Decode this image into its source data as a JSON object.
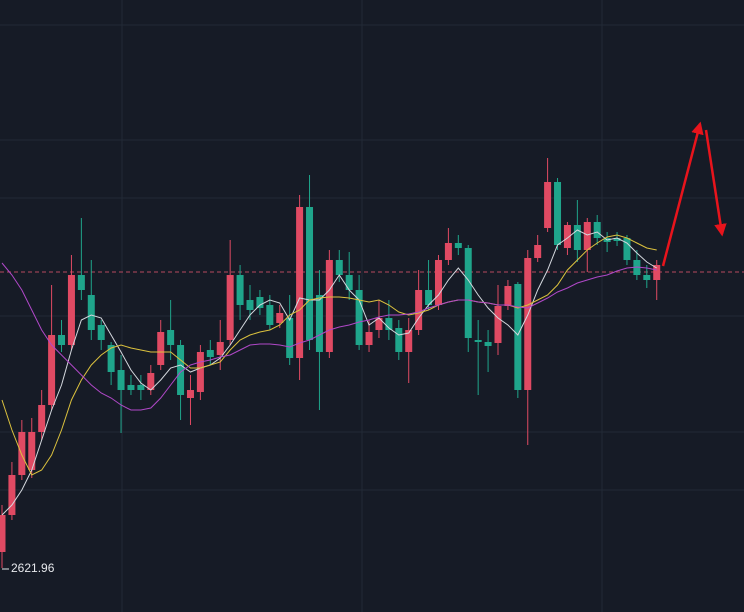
{
  "chart_data": {
    "type": "candlestick",
    "open": [
      2638,
      2675,
      2715,
      2720,
      2758,
      2785,
      2855,
      2845,
      2915,
      2895,
      2865,
      2845,
      2820,
      2805,
      2805,
      2800,
      2825,
      2860,
      2845,
      2792,
      2798,
      2840,
      2835,
      2850,
      2915,
      2890,
      2893,
      2885,
      2867,
      2872,
      2832,
      2983,
      2895,
      2838,
      2930,
      2915,
      2900,
      2845,
      2860,
      2872,
      2862,
      2838,
      2860,
      2900,
      2885,
      2930,
      2947,
      2942,
      2850,
      2848,
      2847,
      2884,
      2906,
      2800,
      2932,
      2962,
      3008,
      2942,
      2965,
      2940,
      2968,
      2952,
      2952,
      2952,
      2930,
      2915,
      2910
    ],
    "high": [
      2685,
      2728,
      2770,
      2772,
      2800,
      2905,
      2870,
      2935,
      2972,
      2930,
      2870,
      2848,
      2835,
      2815,
      2815,
      2825,
      2870,
      2890,
      2850,
      2815,
      2845,
      2850,
      2870,
      2950,
      2925,
      2905,
      2900,
      2895,
      2885,
      2895,
      2995,
      3015,
      2920,
      2940,
      2940,
      2938,
      2915,
      2870,
      2890,
      2890,
      2870,
      2872,
      2920,
      2930,
      2935,
      2962,
      2955,
      2945,
      2870,
      2860,
      2905,
      2910,
      2908,
      2940,
      2955,
      3032,
      3012,
      2968,
      2990,
      2972,
      2975,
      2958,
      2958,
      2955,
      2940,
      2925,
      2930
    ],
    "low": [
      2621.96,
      2670,
      2710,
      2712,
      2750,
      2780,
      2838,
      2840,
      2890,
      2850,
      2840,
      2805,
      2757,
      2795,
      2790,
      2795,
      2820,
      2830,
      2770,
      2765,
      2790,
      2825,
      2820,
      2845,
      2870,
      2870,
      2875,
      2860,
      2862,
      2825,
      2810,
      2840,
      2780,
      2832,
      2908,
      2890,
      2840,
      2838,
      2852,
      2850,
      2830,
      2807,
      2855,
      2880,
      2880,
      2925,
      2935,
      2838,
      2795,
      2818,
      2835,
      2880,
      2792,
      2745,
      2928,
      2958,
      2940,
      2935,
      2928,
      2918,
      2945,
      2938,
      2944,
      2925,
      2910,
      2902,
      2890
    ],
    "close": [
      2675,
      2715,
      2758,
      2758,
      2785,
      2855,
      2845,
      2915,
      2900,
      2860,
      2850,
      2818,
      2800,
      2800,
      2800,
      2817,
      2858,
      2845,
      2795,
      2800,
      2838,
      2833,
      2848,
      2915,
      2885,
      2880,
      2882,
      2865,
      2877,
      2832,
      2983,
      2850,
      2838,
      2930,
      2915,
      2900,
      2845,
      2858,
      2872,
      2860,
      2838,
      2860,
      2900,
      2885,
      2930,
      2947,
      2942,
      2852,
      2848,
      2844,
      2884,
      2904,
      2800,
      2932,
      2945,
      3008,
      2945,
      2965,
      2940,
      2968,
      2952,
      2948,
      2949,
      2930,
      2915,
      2910,
      2925
    ],
    "up_color": "#e04a63",
    "down_color": "#1fa58b",
    "ylim": [
      2578,
      3190
    ],
    "price_line": 2918,
    "series": [
      {
        "color": "#d4d8de",
        "values": [
          2675,
          2685,
          2700,
          2720,
          2750,
          2780,
          2805,
          2840,
          2870,
          2875,
          2872,
          2855,
          2838,
          2820,
          2807,
          2800,
          2810,
          2822,
          2825,
          2818,
          2822,
          2825,
          2832,
          2845,
          2860,
          2875,
          2885,
          2890,
          2887,
          2870,
          2892,
          2890,
          2890,
          2900,
          2915,
          2900,
          2890,
          2865,
          2872,
          2862,
          2855,
          2857,
          2872,
          2885,
          2895,
          2910,
          2922,
          2910,
          2895,
          2882,
          2872,
          2865,
          2855,
          2875,
          2900,
          2920,
          2945,
          2952,
          2960,
          2955,
          2958,
          2950,
          2952,
          2947,
          2937,
          2928,
          2922
        ]
      },
      {
        "color": "#dcc23e",
        "values": [
          2790,
          2760,
          2735,
          2715,
          2720,
          2735,
          2760,
          2790,
          2810,
          2825,
          2835,
          2842,
          2845,
          2842,
          2840,
          2838,
          2838,
          2838,
          2830,
          2822,
          2822,
          2825,
          2828,
          2840,
          2850,
          2855,
          2858,
          2860,
          2865,
          2875,
          2880,
          2890,
          2892,
          2893,
          2893,
          2892,
          2890,
          2888,
          2890,
          2885,
          2878,
          2875,
          2877,
          2880,
          2885,
          2888,
          2890,
          2890,
          2888,
          2887,
          2885,
          2885,
          2882,
          2885,
          2890,
          2895,
          2905,
          2920,
          2930,
          2940,
          2947,
          2953,
          2955,
          2952,
          2947,
          2942,
          2940
        ]
      },
      {
        "color": "#b048c8",
        "values": [
          2927,
          2915,
          2900,
          2880,
          2860,
          2845,
          2835,
          2825,
          2815,
          2805,
          2797,
          2792,
          2785,
          2780,
          2780,
          2782,
          2792,
          2805,
          2818,
          2825,
          2828,
          2830,
          2833,
          2835,
          2840,
          2845,
          2846,
          2846,
          2845,
          2843,
          2847,
          2850,
          2855,
          2860,
          2863,
          2865,
          2868,
          2870,
          2873,
          2875,
          2875,
          2876,
          2878,
          2882,
          2885,
          2888,
          2890,
          2890,
          2888,
          2887,
          2885,
          2885,
          2883,
          2882,
          2887,
          2892,
          2898,
          2902,
          2907,
          2910,
          2913,
          2915,
          2919,
          2922,
          2923,
          2922,
          2920
        ]
      }
    ]
  }
}
